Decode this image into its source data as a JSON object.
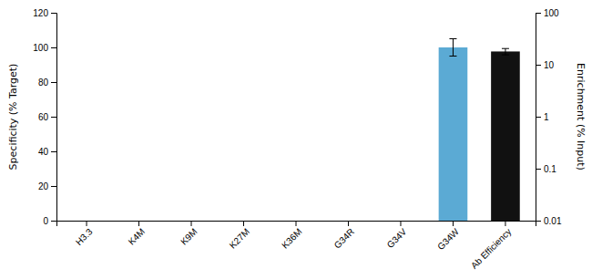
{
  "chart_data": {
    "type": "bar",
    "categories": [
      "H3.3",
      "K4M",
      "K9M",
      "K27M",
      "K36M",
      "G34R",
      "G34V",
      "G34W",
      "Ab Efficiency"
    ],
    "series": [
      {
        "color": "#5baad4",
        "values": [
          null,
          null,
          null,
          null,
          null,
          null,
          null,
          100,
          null
        ],
        "errors": [
          null,
          null,
          null,
          null,
          null,
          null,
          null,
          5,
          null
        ]
      },
      {
        "color": "#111111",
        "axis": "y2",
        "values": [
          null,
          null,
          null,
          null,
          null,
          null,
          null,
          null,
          18
        ],
        "errors": [
          null,
          null,
          null,
          null,
          null,
          null,
          null,
          null,
          2.5
        ]
      }
    ],
    "ylabel": "Specificity (% Target)",
    "y2label": "Enrichment (% Input)",
    "ylim": [
      0,
      120
    ],
    "yticks": [
      0,
      20,
      40,
      60,
      80,
      100,
      120
    ],
    "y2lim": [
      0.01,
      100
    ],
    "y2ticks": [
      0.01,
      0.1,
      1,
      10,
      100
    ],
    "log": "y2",
    "grid": false
  }
}
